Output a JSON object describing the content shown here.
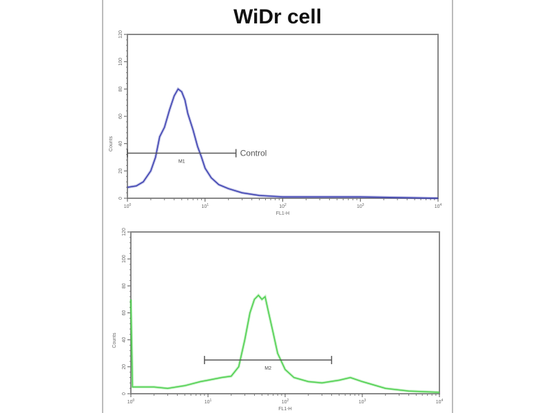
{
  "chart_data": [
    {
      "type": "line",
      "title": "WiDr cell",
      "xlabel": "FL1-H",
      "ylabel": "Counts",
      "xscale": "log",
      "xlim": [
        1,
        10000
      ],
      "ylim": [
        0,
        120
      ],
      "xticks": [
        "10^0",
        "10^1",
        "10^2",
        "10^3",
        "10^4"
      ],
      "yticks": [
        "0",
        "20",
        "40",
        "60",
        "80",
        "100",
        "120"
      ],
      "color": "#3a3fb0",
      "gate": {
        "label": "M1",
        "x": [
          1,
          25
        ],
        "y": 33,
        "annotation": "Control"
      },
      "series": [
        {
          "x": [
            1,
            1.3,
            1.6,
            2,
            2.3,
            2.6,
            3,
            3.5,
            4,
            4.5,
            5,
            5.5,
            6,
            7,
            8,
            9,
            10,
            12,
            15,
            20,
            30,
            50,
            100,
            1000,
            10000
          ],
          "y": [
            8,
            9,
            12,
            20,
            30,
            45,
            52,
            65,
            75,
            80,
            78,
            72,
            62,
            50,
            38,
            30,
            22,
            15,
            10,
            7,
            4,
            2,
            1,
            1,
            0
          ]
        }
      ]
    },
    {
      "type": "line",
      "xlabel": "FL1-H",
      "ylabel": "Counts",
      "xscale": "log",
      "xlim": [
        1,
        10000
      ],
      "ylim": [
        0,
        120
      ],
      "xticks": [
        "10^0",
        "10^1",
        "10^2",
        "10^3",
        "10^4"
      ],
      "yticks": [
        "0",
        "20",
        "40",
        "60",
        "80",
        "100",
        "120"
      ],
      "color": "#4ccf4c",
      "gate": {
        "label": "M2",
        "x": [
          9,
          400
        ],
        "y": 25
      },
      "series": [
        {
          "x": [
            1,
            1.05,
            2,
            3,
            5,
            8,
            10,
            15,
            20,
            25,
            30,
            35,
            40,
            45,
            50,
            55,
            60,
            70,
            80,
            100,
            130,
            200,
            300,
            500,
            700,
            1000,
            2000,
            4000,
            10000
          ],
          "y": [
            70,
            5,
            5,
            4,
            6,
            9,
            10,
            12,
            13,
            20,
            40,
            60,
            70,
            73,
            70,
            72,
            62,
            45,
            30,
            18,
            12,
            9,
            8,
            10,
            12,
            9,
            4,
            2,
            1
          ]
        }
      ]
    }
  ]
}
